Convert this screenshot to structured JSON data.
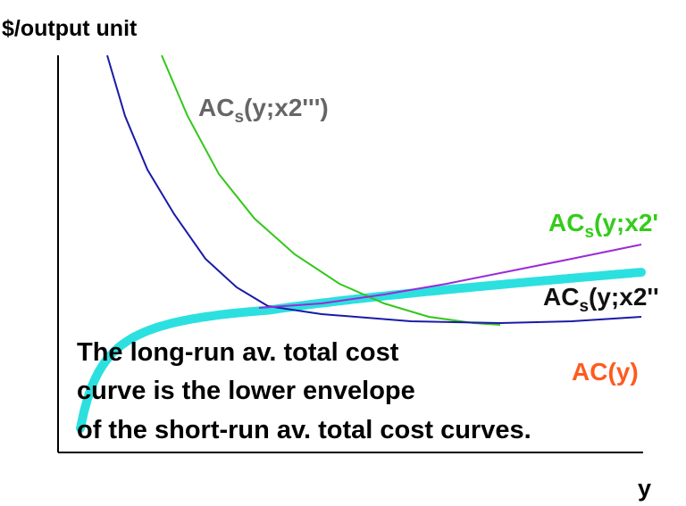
{
  "chart_data": {
    "type": "line",
    "ylabel": "$/output unit",
    "xlabel": "y",
    "grid": false,
    "series": [
      {
        "name": "AC(y)",
        "color": "#2ce0e0",
        "label_main": "AC(y)",
        "label_sub": "",
        "label_tail": ""
      },
      {
        "name": "ACs(y;x2')",
        "color": "#33cc1a",
        "label_main": "AC",
        "label_sub": "s",
        "label_tail": "(y;x2'"
      },
      {
        "name": "ACs(y;x2'')",
        "color": "#111111",
        "label_main": "AC",
        "label_sub": "s",
        "label_tail": "(y;x2''"
      },
      {
        "name": "ACs(y;x2''')",
        "color": "#666666",
        "label_main": "AC",
        "label_sub": "s",
        "label_tail": "(y;x2''')"
      }
    ],
    "curve_colors": {
      "long_run": "#2ce0e0",
      "short_run_low": "#1a1aa8",
      "short_run_mid_rising": "#9a2bd6",
      "short_run_high": "#33c71a"
    }
  },
  "annotation": {
    "lines": [
      "The long-run av. total cost",
      "curve is the lower envelope",
      "of the short-run av. total cost curves."
    ]
  }
}
